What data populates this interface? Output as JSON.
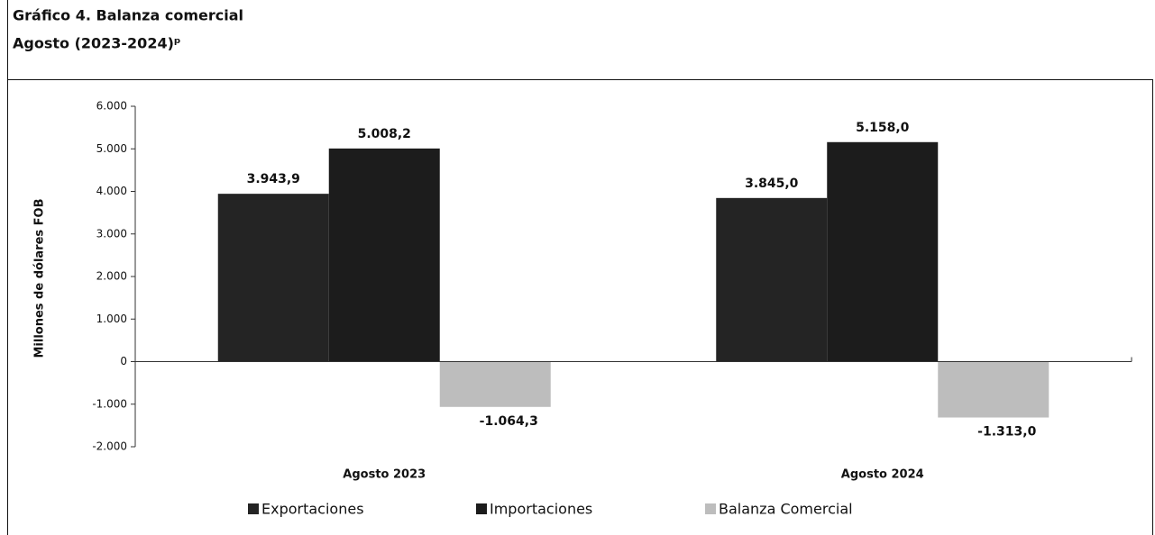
{
  "chart_data": {
    "type": "bar",
    "title": "Gráfico 4. Balanza comercial",
    "subtitle": "Agosto (2023-2024)ᵖ",
    "y_label": "Millones de dólares FOB",
    "categories": [
      "Agosto 2023",
      "Agosto 2024"
    ],
    "series": [
      {
        "name": "Exportaciones",
        "color": "#242424",
        "values": [
          3943.9,
          3845.0
        ],
        "value_labels": [
          "3.943,9",
          "3.845,0"
        ]
      },
      {
        "name": "Importaciones",
        "color": "#1c1c1c",
        "values": [
          5008.2,
          5158.0
        ],
        "value_labels": [
          "5.008,2",
          "5.158,0"
        ]
      },
      {
        "name": "Balanza Comercial",
        "color": "#bdbdbd",
        "values": [
          -1064.3,
          -1313.0
        ],
        "value_labels": [
          "-1.064,3",
          "-1.313,0"
        ]
      }
    ],
    "ylim": [
      -2000,
      6000
    ],
    "yticks": [
      {
        "value": -2000,
        "label": "-2.000"
      },
      {
        "value": -1000,
        "label": "-1.000"
      },
      0,
      {
        "value": 1000,
        "label": "1.000"
      },
      {
        "value": 2000,
        "label": "2.000"
      },
      {
        "value": 3000,
        "label": "3.000"
      },
      {
        "value": 4000,
        "label": "4.000"
      },
      {
        "value": 5000,
        "label": "5.000"
      },
      {
        "value": 6000,
        "label": "6.000"
      }
    ],
    "legend": "bottom"
  }
}
